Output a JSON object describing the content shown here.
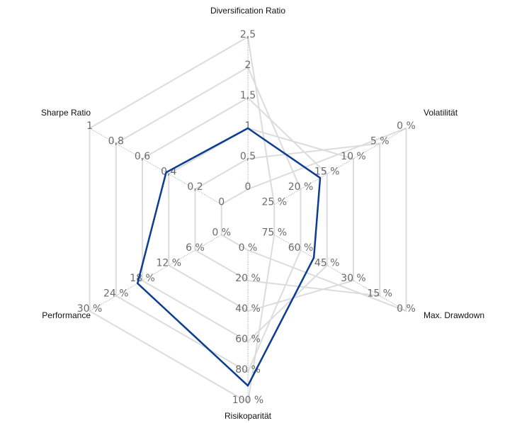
{
  "chart_data": {
    "type": "radar",
    "categories": [
      "Diversification Ratio",
      "Volatilität",
      "Max. Drawdown",
      "Risikoparität",
      "Performance",
      "Sharpe Ratio"
    ],
    "axes": [
      {
        "lim": [
          0,
          2.5
        ],
        "reversed": false,
        "ticks": [
          0,
          {
            "value": 0.5,
            "label": "0,5"
          },
          1,
          {
            "value": 1.5,
            "label": "1,5"
          },
          2,
          {
            "value": 2.5,
            "label": "2,5"
          }
        ]
      },
      {
        "lim": [
          0,
          25
        ],
        "reversed": true,
        "ticks": [
          {
            "value": 0,
            "label": "0 %"
          },
          {
            "value": 5,
            "label": "5 %"
          },
          {
            "value": 10,
            "label": "10 %"
          },
          {
            "value": 15,
            "label": "15 %"
          },
          {
            "value": 20,
            "label": "20 %"
          },
          {
            "value": 25,
            "label": "25 %"
          }
        ]
      },
      {
        "lim": [
          0,
          75
        ],
        "reversed": true,
        "ticks": [
          {
            "value": 0,
            "label": "0 %"
          },
          {
            "value": 15,
            "label": "15 %"
          },
          {
            "value": 30,
            "label": "30 %"
          },
          {
            "value": 45,
            "label": "45 %"
          },
          {
            "value": 60,
            "label": "60 %"
          },
          {
            "value": 75,
            "label": "75 %"
          }
        ]
      },
      {
        "lim": [
          0,
          100
        ],
        "reversed": false,
        "ticks": [
          {
            "value": 0,
            "label": "0 %"
          },
          {
            "value": 20,
            "label": "20 %"
          },
          {
            "value": 40,
            "label": "40 %"
          },
          {
            "value": 60,
            "label": "60 %"
          },
          {
            "value": 80,
            "label": "80 %"
          },
          {
            "value": 100,
            "label": "100 %"
          }
        ]
      },
      {
        "lim": [
          0,
          30
        ],
        "reversed": false,
        "ticks": [
          {
            "value": 0,
            "label": "0 %"
          },
          {
            "value": 6,
            "label": "6 %"
          },
          {
            "value": 12,
            "label": "12 %"
          },
          {
            "value": 18,
            "label": "18 %"
          },
          {
            "value": 24,
            "label": "24 %"
          },
          {
            "value": 30,
            "label": "30 %"
          }
        ]
      },
      {
        "lim": [
          0,
          1
        ],
        "reversed": false,
        "ticks": [
          0,
          {
            "value": 0.2,
            "label": "0,2"
          },
          {
            "value": 0.4,
            "label": "0,4"
          },
          {
            "value": 0.6,
            "label": "0,6"
          },
          {
            "value": 0.8,
            "label": "0,8"
          },
          1
        ]
      }
    ],
    "series": [
      {
        "color": "#0b3d91",
        "values": [
          1,
          16.3,
          52.5,
          89,
          19.1,
          0.42
        ]
      }
    ]
  }
}
